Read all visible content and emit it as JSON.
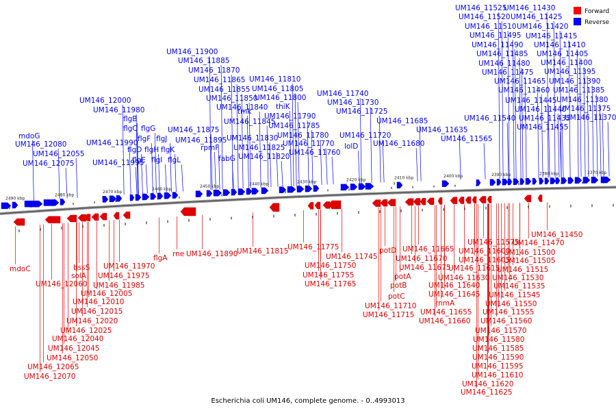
{
  "caption": "Escherichia coli UM146, complete genome. - 0..4993013",
  "legend": [
    {
      "label": "Forward",
      "color": "#ff0000"
    },
    {
      "label": "Reverse",
      "color": "#0000ff"
    }
  ],
  "colors": {
    "forward": "#dd0000",
    "reverse": "#0000ee",
    "backbone": "#888888"
  },
  "ticks": [
    "2490 kbp",
    "2480 kbp",
    "2470 kbp",
    "2460 kbp",
    "2450 kbp",
    "2440 kbp",
    "2430 kbp",
    "2420 kbp",
    "2410 kbp",
    "2400 kbp",
    "2390 kbp",
    "2380 kbp",
    "2370 kbp"
  ],
  "reverse_labels": [
    "mdoG",
    "UM146_12080",
    "UM146_12055",
    "UM146_12075",
    "UM146_12000",
    "UM146_11980",
    "UM146_11990",
    "UM146_11995",
    "flgB",
    "flgC",
    "flgG",
    "flgF",
    "flgD",
    "flgH",
    "flgJ",
    "flgE",
    "flgI",
    "flgK",
    "flgL",
    "UM146_11900",
    "UM146_11885",
    "UM146_11870",
    "UM146_11865",
    "UM146_11855",
    "UM146_11850",
    "UM146_11840",
    "UM146_11845",
    "UM146_11875",
    "UM146_11895",
    "rpmF",
    "fabG",
    "tmk",
    "UM146_11830",
    "UM146_11825",
    "UM146_11820",
    "UM146_11810",
    "UM146_11805",
    "UM146_11800",
    "thiK",
    "UM146_11790",
    "UM146_11785",
    "UM146_11780",
    "UM146_11770",
    "UM146_11760",
    "UM146_11740",
    "UM146_11730",
    "UM146_11725",
    "UM146_11720",
    "lolD",
    "UM146_11685",
    "UM146_11680",
    "UM146_11635",
    "UM146_11565",
    "UM146_11525",
    "UM146_11430",
    "UM146_11520",
    "UM146_11425",
    "UM146_11510",
    "UM146_11420",
    "UM146_11495",
    "UM146_11415",
    "UM146_11490",
    "UM146_11410",
    "UM146_11485",
    "UM146_11405",
    "UM146_11480",
    "UM146_11400",
    "UM146_11475",
    "UM146_11395",
    "UM146_11465",
    "UM146_11390",
    "UM146_11460",
    "UM146_11385",
    "UM146_11445",
    "UM146_11380",
    "UM146_11440",
    "UM146_11375",
    "UM146_11540",
    "UM146_11435",
    "UM146_11370",
    "UM146_11455"
  ],
  "forward_labels": [
    "mdoC",
    "UM146_12060",
    "bssS",
    "solA",
    "UM146_11970",
    "UM146_11975",
    "UM146_11985",
    "UM146_12005",
    "UM146_12010",
    "UM146_12015",
    "UM146_12020",
    "UM146_12025",
    "UM146_12040",
    "UM146_12045",
    "UM146_12050",
    "UM146_12065",
    "UM146_12070",
    "flgA",
    "rne",
    "UM146_11890",
    "UM146_11815",
    "UM146_11775",
    "UM146_11745",
    "UM146_11750",
    "UM146_11755",
    "UM146_11765",
    "potD",
    "UM146_11665",
    "UM146_11670",
    "UM146_11675",
    "potA",
    "potB",
    "potC",
    "UM146_11710",
    "UM146_11715",
    "UM146_11630",
    "UM146_11640",
    "rnmA",
    "UM146_11645",
    "UM146_11655",
    "UM146_11660",
    "UM146_11600",
    "UM146_11605",
    "UM146_11615",
    "UM146_11575",
    "UM146_11500",
    "UM146_11505",
    "UM146_11515",
    "UM146_11530",
    "UM146_11535",
    "UM146_11545",
    "UM146_11550",
    "UM146_11555",
    "UM146_11560",
    "UM146_11570",
    "UM146_11580",
    "UM146_11585",
    "UM146_11590",
    "UM146_11595",
    "UM146_11610",
    "UM146_11620",
    "UM146_11625",
    "UM146_11450",
    "UM146_11470"
  ]
}
